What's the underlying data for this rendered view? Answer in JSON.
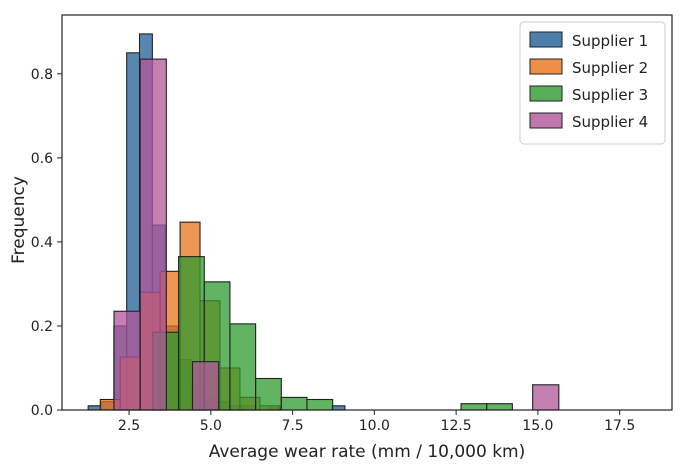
{
  "chart_data": {
    "type": "bar",
    "subtype": "overlapping-histogram",
    "title": "",
    "xlabel": "Average wear rate (mm / 10,000 km)",
    "ylabel": "Frequency",
    "xlim": [
      0.45,
      19.1
    ],
    "ylim": [
      0,
      0.94
    ],
    "xticks": [
      2.5,
      5.0,
      7.5,
      10.0,
      12.5,
      15.0,
      17.5
    ],
    "xtick_labels": [
      "2.5",
      "5.0",
      "7.5",
      "10.0",
      "12.5",
      "15.0",
      "17.5"
    ],
    "yticks": [
      0.0,
      0.2,
      0.4,
      0.6,
      0.8
    ],
    "ytick_labels": [
      "0.0",
      "0.2",
      "0.4",
      "0.6",
      "0.8"
    ],
    "grid": false,
    "legend_position": "top-right",
    "series": [
      {
        "name": "Supplier 1",
        "color": "#1f5f96",
        "bin_start": 1.25,
        "bin_width": 0.3925,
        "values": [
          0.01,
          0.02,
          0.2,
          0.85,
          0.895,
          0.44,
          0.2,
          0.12,
          0.06,
          0.03,
          0.02,
          0.01,
          0.01,
          0,
          0.005,
          0,
          0,
          0,
          0,
          0.01
        ]
      },
      {
        "name": "Supplier 2",
        "color": "#e8731a",
        "bin_start": 1.62,
        "bin_width": 0.61,
        "values": [
          0.025,
          0.126,
          0.28,
          0.33,
          0.447,
          0.26,
          0.1,
          0.03,
          0.01
        ]
      },
      {
        "name": "Supplier 3",
        "color": "#2e9a2e",
        "bin_start": 3.23,
        "bin_width": 0.785,
        "values": [
          0.185,
          0.365,
          0.305,
          0.205,
          0.075,
          0.03,
          0.025,
          0,
          0,
          0,
          0,
          0,
          0.015,
          0.015
        ]
      },
      {
        "name": "Supplier 4",
        "color": "#b0559a",
        "bin_start": 2.04,
        "bin_width": 0.8,
        "values": [
          0.235,
          0.835,
          0,
          0.115,
          0,
          0,
          0,
          0,
          0,
          0,
          0,
          0,
          0,
          0,
          0,
          0,
          0.06
        ]
      }
    ]
  }
}
